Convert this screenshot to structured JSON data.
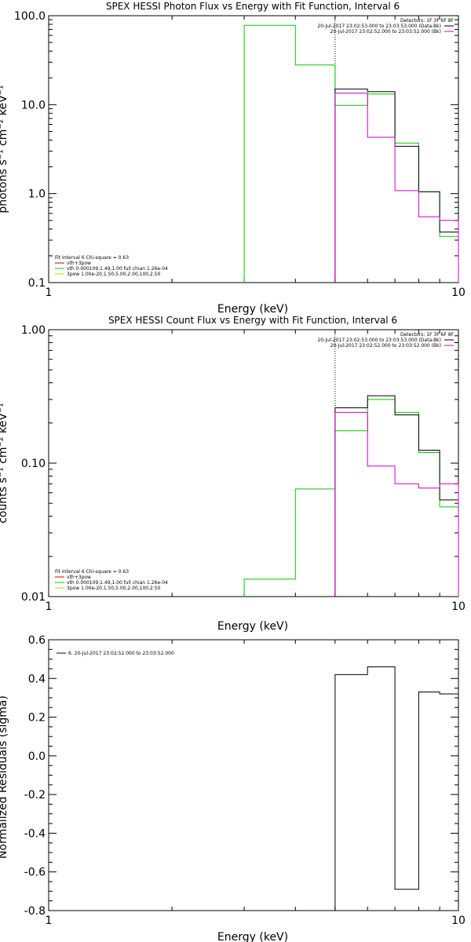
{
  "chart_data": [
    {
      "type": "line",
      "title": "SPEX HESSI Photon Flux vs Energy with Fit Function, Interval 6",
      "xlabel": "Energy (keV)",
      "ylabel": "photons s⁻¹ cm⁻² keV⁻¹",
      "xscale": "log",
      "yscale": "log",
      "xlim": [
        1,
        10
      ],
      "ylim": [
        0.1,
        100
      ],
      "xticks": [
        {
          "v": 1,
          "label": "1"
        },
        {
          "v": 10,
          "label": "10"
        }
      ],
      "yticks": [
        {
          "v": 0.1,
          "label": "0.1"
        },
        {
          "v": 1,
          "label": "1.0"
        },
        {
          "v": 10,
          "label": "10.0"
        },
        {
          "v": 100,
          "label": "100.0"
        }
      ],
      "vline": 5,
      "legend_top": [
        {
          "text": "Detectors: 1F 3F 6F 8F",
          "color": ""
        },
        {
          "text": "20-Jul-2017 23:02:53.000 to 23:03:53.000 (Data-Bk)",
          "color": "#000000"
        },
        {
          "text": "20-Jul-2017 23:02:52.000 to 23:03:52.000 (Bk)",
          "color": "#cc00cc"
        }
      ],
      "legend_bottom": [
        {
          "text": "Fit Interval 6   Chi-square = 0.63",
          "color": ""
        },
        {
          "text": "vth+3pow",
          "color": "#cc0000"
        },
        {
          "text": "vth 0.000109,1.49,1.00   full chian 1.26e-04",
          "color": "#00cc00"
        },
        {
          "text": "3pow 1.00e-20,1.50,5.00,2.00,100,2.50",
          "color": "#e0c000"
        }
      ],
      "series": [
        {
          "color": "#00cc00",
          "edges": [
            3,
            4,
            5,
            6,
            7,
            8,
            9,
            10
          ],
          "values": [
            78,
            28,
            9.8,
            13.2,
            3.7,
            1.05,
            0.33
          ]
        },
        {
          "color": "#000000",
          "edges": [
            5,
            6,
            7,
            8,
            9,
            10
          ],
          "values": [
            15,
            14,
            3.4,
            1.05,
            0.37
          ]
        },
        {
          "color": "#cc00cc",
          "edges": [
            5,
            6,
            7,
            8,
            9,
            10
          ],
          "values": [
            13.5,
            4.3,
            1.08,
            0.55,
            0.5
          ]
        }
      ]
    },
    {
      "type": "line",
      "title": "SPEX HESSI Count Flux vs Energy with Fit Function, Interval 6",
      "xlabel": "Energy (keV)",
      "ylabel": "counts s⁻¹ cm⁻² keV⁻¹",
      "xscale": "log",
      "yscale": "log",
      "xlim": [
        1,
        10
      ],
      "ylim": [
        0.01,
        1
      ],
      "xticks": [
        {
          "v": 1,
          "label": "1"
        },
        {
          "v": 10,
          "label": "10"
        }
      ],
      "yticks": [
        {
          "v": 0.01,
          "label": "0.01"
        },
        {
          "v": 0.1,
          "label": "0.10"
        },
        {
          "v": 1,
          "label": "1.00"
        }
      ],
      "vline": 5,
      "legend_top": [
        {
          "text": "Detectors: 1F 3F 6F 8F",
          "color": ""
        },
        {
          "text": "20-Jul-2017 23:02:53.000 to 23:03:53.000 (Data-Bk)",
          "color": "#000000"
        },
        {
          "text": "20-Jul-2017 23:02:52.000 to 23:03:52.000 (Bk)",
          "color": "#cc00cc"
        }
      ],
      "legend_bottom": [
        {
          "text": "Fit Interval 6   Chi-square = 0.63",
          "color": ""
        },
        {
          "text": "vth+3pow",
          "color": "#cc0000"
        },
        {
          "text": "vth 0.000109,1.49,1.00   full chian 1.26e-04",
          "color": "#00cc00"
        },
        {
          "text": "3pow 1.00e-20,1.50,5.00,2.00,100,2.50",
          "color": "#e0c000"
        }
      ],
      "series": [
        {
          "color": "#00cc00",
          "edges": [
            3,
            4,
            5,
            6,
            7,
            8,
            9,
            10
          ],
          "values": [
            0.0135,
            0.064,
            0.175,
            0.3,
            0.24,
            0.12,
            0.047
          ]
        },
        {
          "color": "#000000",
          "edges": [
            5,
            6,
            7,
            8,
            9,
            10
          ],
          "values": [
            0.26,
            0.32,
            0.23,
            0.125,
            0.053
          ]
        },
        {
          "color": "#cc00cc",
          "edges": [
            5,
            6,
            7,
            8,
            9,
            10
          ],
          "values": [
            0.24,
            0.095,
            0.07,
            0.065,
            0.07
          ]
        }
      ]
    },
    {
      "type": "line",
      "title": "",
      "xlabel": "Energy (keV)",
      "ylabel": "Normalized Residuals (sigma)",
      "xscale": "log",
      "yscale": "linear",
      "xlim": [
        1,
        10
      ],
      "ylim": [
        -0.8,
        0.6
      ],
      "xticks": [
        {
          "v": 1,
          "label": "1"
        },
        {
          "v": 10,
          "label": "10"
        }
      ],
      "yticks": [
        {
          "v": -0.8,
          "label": "-0.8"
        },
        {
          "v": -0.6,
          "label": "-0.6"
        },
        {
          "v": -0.4,
          "label": "-0.4"
        },
        {
          "v": -0.2,
          "label": "-0.2"
        },
        {
          "v": 0,
          "label": "0.0"
        },
        {
          "v": 0.2,
          "label": "0.2"
        },
        {
          "v": 0.4,
          "label": "0.4"
        },
        {
          "v": 0.6,
          "label": "0.6"
        }
      ],
      "legend_top": [
        {
          "text": "6. 20-Jul-2017 23:02:52.000 to 23:03:52.000",
          "color": "#000000"
        }
      ],
      "series": [
        {
          "color": "#000000",
          "edges": [
            5,
            6,
            7,
            8,
            9,
            10
          ],
          "values": [
            0.42,
            0.46,
            -0.69,
            0.33,
            0.32
          ]
        }
      ]
    }
  ]
}
